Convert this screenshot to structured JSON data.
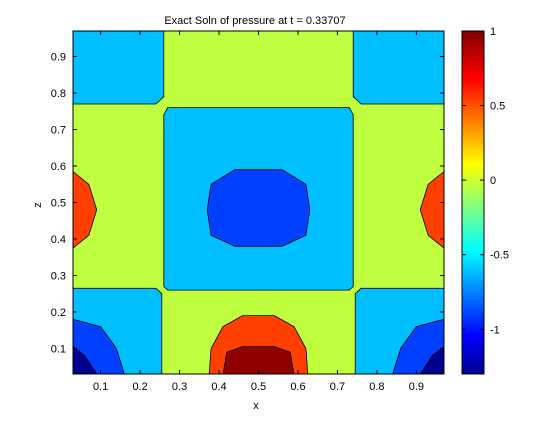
{
  "chart_data": {
    "type": "contour",
    "title": "Exact Soln of pressure at t = 0.33707",
    "xlabel": "x",
    "ylabel": "z",
    "xlim": [
      0.03,
      0.97
    ],
    "ylim": [
      0.03,
      0.97
    ],
    "xticks": [
      "0.1",
      "0.2",
      "0.3",
      "0.4",
      "0.5",
      "0.6",
      "0.7",
      "0.8",
      "0.9"
    ],
    "yticks": [
      "0.1",
      "0.2",
      "0.3",
      "0.4",
      "0.5",
      "0.6",
      "0.7",
      "0.8",
      "0.9"
    ],
    "colorbar": {
      "range": [
        -1.3,
        1.0
      ],
      "ticks": [
        "1",
        "0.5",
        "0",
        "-0.5",
        "-1"
      ],
      "colormap": "jet"
    },
    "level_colors": {
      "deep_blue": "#00008f",
      "blue": "#0040ff",
      "cyan": "#00bfff",
      "yellow_green": "#bfff40",
      "orange": "#ff4000",
      "dark_red": "#8f0000"
    },
    "regions": [
      {
        "level": "cyan",
        "label": "top-left quadrant"
      },
      {
        "level": "yellow_green",
        "label": "top band"
      },
      {
        "level": "cyan",
        "label": "top-right quadrant"
      },
      {
        "level": "yellow_green",
        "label": "left band"
      },
      {
        "level": "cyan",
        "label": "center square"
      },
      {
        "level": "blue",
        "label": "center minimum"
      },
      {
        "level": "yellow_green",
        "label": "right band"
      },
      {
        "level": "orange",
        "label": "left edge maximum"
      },
      {
        "level": "orange",
        "label": "right edge maximum"
      },
      {
        "level": "cyan",
        "label": "bottom-left quadrant"
      },
      {
        "level": "blue",
        "label": "bottom-left blue"
      },
      {
        "level": "deep_blue",
        "label": "bottom-left deep blue"
      },
      {
        "level": "yellow_green",
        "label": "bottom band"
      },
      {
        "level": "orange",
        "label": "bottom center orange"
      },
      {
        "level": "dark_red",
        "label": "bottom center maximum"
      },
      {
        "level": "cyan",
        "label": "bottom-right quadrant"
      },
      {
        "level": "blue",
        "label": "bottom-right blue"
      },
      {
        "level": "deep_blue",
        "label": "bottom-right deep blue"
      }
    ]
  }
}
